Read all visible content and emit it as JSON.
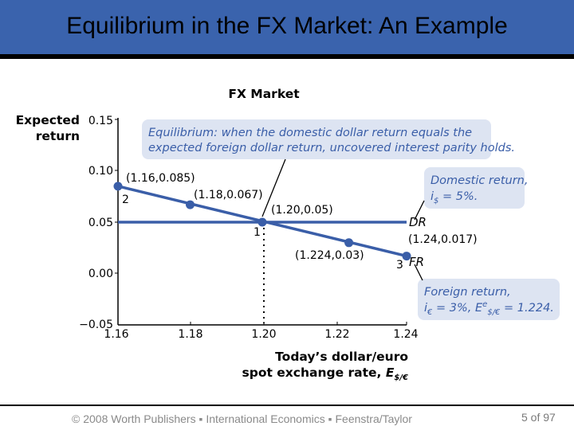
{
  "slide": {
    "title": "Equilibrium in the FX Market: An Example",
    "footer": "© 2008 Worth Publishers ▪ International Economics ▪ Feenstra/Taylor",
    "page": "5 of 97"
  },
  "colors": {
    "title_bar": "#3a63ad",
    "line": "#3a5ea8",
    "callout_bg": "#dde4f2",
    "accent": "#3a5ea8"
  },
  "chart_data": {
    "type": "line",
    "title": "FX Market",
    "ylabel_lines": [
      "Expected",
      "return"
    ],
    "xlabel_lines": [
      "Today’s dollar/euro",
      "spot exchange rate, E$/€"
    ],
    "x_ticks": [
      "1.16",
      "1.18",
      "1.20",
      "1.22",
      "1.24"
    ],
    "y_ticks": [
      "0.15",
      "0.10",
      "0.05",
      "0.00",
      "−0.05"
    ],
    "xlim": [
      1.16,
      1.24
    ],
    "ylim": [
      -0.05,
      0.15
    ],
    "grid": false,
    "series": [
      {
        "name": "DR",
        "x": [
          1.16,
          1.24
        ],
        "y": [
          0.05,
          0.05
        ]
      },
      {
        "name": "FR",
        "x": [
          1.16,
          1.24
        ],
        "y": [
          0.085,
          0.017
        ]
      }
    ],
    "points": [
      {
        "x": 1.16,
        "y": 0.085,
        "label": "(1.16,0.085)",
        "marker": "2"
      },
      {
        "x": 1.18,
        "y": 0.067,
        "label": "(1.18,0.067)"
      },
      {
        "x": 1.2,
        "y": 0.05,
        "label": "(1.20,0.05)",
        "marker": "1"
      },
      {
        "x": 1.224,
        "y": 0.03,
        "label": "(1.224,0.03)"
      },
      {
        "x": 1.24,
        "y": 0.017,
        "label": "(1.24,0.017)",
        "marker": "3"
      }
    ],
    "callouts": {
      "equilibrium": [
        "Equilibrium: when the domestic dollar return equals the",
        "expected foreign dollar return, uncovered interest parity holds."
      ],
      "domestic": [
        "Domestic return,",
        "i$ = 5%."
      ],
      "foreign": [
        "Foreign return,",
        "i€ = 3%, Ee$/€ = 1.224."
      ]
    }
  }
}
